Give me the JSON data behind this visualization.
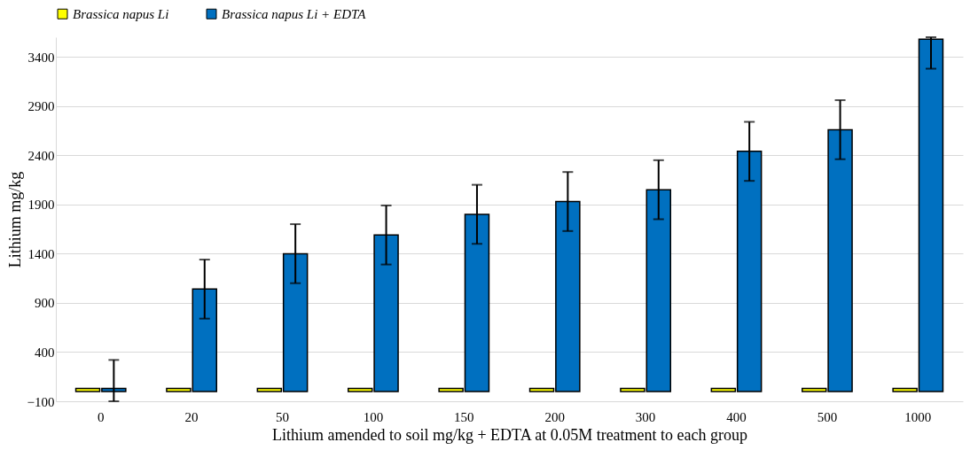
{
  "chart_data": {
    "type": "bar",
    "xlabel": "Lithium amended to soil mg/kg + EDTA at 0.05M treatment to each group",
    "ylabel": "Lithium mg/kg",
    "categories": [
      "0",
      "20",
      "50",
      "100",
      "150",
      "200",
      "300",
      "400",
      "500",
      "1000"
    ],
    "series": [
      {
        "name": "Brassica napus Li",
        "color": "#ffff00",
        "values": [
          30,
          30,
          30,
          30,
          30,
          30,
          30,
          30,
          30,
          30
        ]
      },
      {
        "name": "Brassica napus Li + EDTA",
        "color": "#0070c0",
        "values": [
          30,
          1040,
          1400,
          1590,
          1800,
          1930,
          2050,
          2440,
          2660,
          3580
        ],
        "errors": [
          [
            -100,
            320
          ],
          300,
          300,
          300,
          300,
          300,
          300,
          300,
          300,
          [
            3280,
            3600
          ]
        ]
      }
    ],
    "ylim": [
      -100,
      3600
    ],
    "yticks": [
      -100,
      400,
      900,
      1400,
      1900,
      2400,
      2900,
      3400
    ],
    "grid": "y",
    "legend": "top"
  }
}
